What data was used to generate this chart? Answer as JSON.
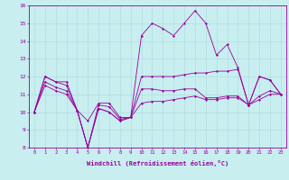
{
  "xlabel": "Windchill (Refroidissement éolien,°C)",
  "bg_color": "#c8eef0",
  "grid_color": "#b0dde0",
  "line_color": "#990099",
  "ylim": [
    8,
    16
  ],
  "xlim": [
    -0.5,
    23.5
  ],
  "yticks": [
    8,
    9,
    10,
    11,
    12,
    13,
    14,
    15,
    16
  ],
  "xticks": [
    0,
    1,
    2,
    3,
    4,
    5,
    6,
    7,
    8,
    9,
    10,
    11,
    12,
    13,
    14,
    15,
    16,
    17,
    18,
    19,
    20,
    21,
    22,
    23
  ],
  "hours": [
    0,
    1,
    2,
    3,
    4,
    5,
    6,
    7,
    8,
    9,
    10,
    11,
    12,
    13,
    14,
    15,
    16,
    17,
    18,
    19,
    20,
    21,
    22,
    23
  ],
  "line1": [
    10.0,
    12.0,
    11.7,
    11.7,
    10.1,
    9.5,
    10.5,
    10.5,
    9.7,
    9.7,
    14.3,
    15.0,
    14.7,
    14.3,
    15.0,
    15.7,
    15.0,
    13.2,
    13.8,
    12.5,
    10.4,
    12.0,
    11.8,
    11.0
  ],
  "line2": [
    10.0,
    12.0,
    11.7,
    11.5,
    10.1,
    8.0,
    10.4,
    10.3,
    9.6,
    9.7,
    12.0,
    12.0,
    12.0,
    12.0,
    12.1,
    12.2,
    12.2,
    12.3,
    12.3,
    12.4,
    10.4,
    12.0,
    11.8,
    11.0
  ],
  "line3": [
    10.0,
    11.7,
    11.4,
    11.2,
    10.1,
    8.0,
    10.2,
    10.0,
    9.5,
    9.7,
    11.3,
    11.3,
    11.2,
    11.2,
    11.3,
    11.3,
    10.8,
    10.8,
    10.9,
    10.9,
    10.4,
    10.9,
    11.2,
    11.0
  ],
  "line4": [
    10.0,
    11.5,
    11.2,
    11.0,
    10.1,
    8.0,
    10.2,
    10.0,
    9.5,
    9.7,
    10.5,
    10.6,
    10.6,
    10.7,
    10.8,
    10.9,
    10.7,
    10.7,
    10.8,
    10.8,
    10.4,
    10.7,
    11.0,
    11.0
  ]
}
